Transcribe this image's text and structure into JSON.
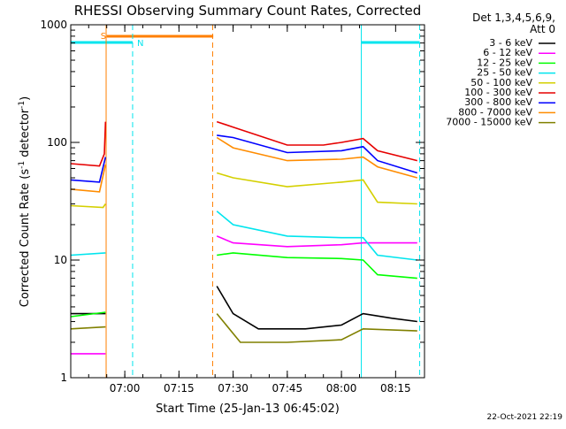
{
  "chart_data": {
    "type": "line",
    "title": "RHESSI Observing Summary Count Rates, Corrected",
    "xlabel": "Start Time (25-Jan-13 06:45:02)",
    "ylabel": "Corrected Count Rate (s⁻¹ detector⁻¹)",
    "ylabel_main": "Corrected Count Rate (s",
    "ylabel_sup1": "-1",
    "ylabel_mid": " detector",
    "ylabel_sup2": "-1",
    "ylabel_end": ")",
    "y_scale": "log",
    "ylim": [
      1,
      1000
    ],
    "xlim": [
      "06:45:02",
      "08:23:00"
    ],
    "x_ticks": [
      "07:00",
      "07:15",
      "07:30",
      "07:45",
      "08:00",
      "08:15"
    ],
    "y_ticks": [
      "1",
      "10",
      "100",
      "1000"
    ],
    "grid": false,
    "legend_position": "right",
    "legend_header": [
      "Det 1,3,4,5,6,9,",
      "Att 0"
    ],
    "timestamp": "22-Oct-2021 22:19",
    "colors": {
      "axes": "#000000",
      "saa_marker": "#ff7f00",
      "night_marker": "#00e5ee"
    },
    "markers": {
      "saa_label": "S",
      "night_label": "N",
      "saa_band": [
        "06:55:00",
        "07:24:30"
      ],
      "night_bands": [
        [
          "06:45:02",
          "07:02:10"
        ],
        [
          "08:05:30",
          "08:21:40"
        ]
      ],
      "saa_lines": [
        "06:54:50",
        "07:24:20"
      ],
      "night_lines": [
        "07:02:10",
        "08:05:30",
        "08:21:40"
      ]
    },
    "series": [
      {
        "name": "3 - 6 keV",
        "color": "#000000",
        "points": [
          [
            "06:45:02",
            3.5
          ],
          [
            "06:54:40",
            3.5
          ],
          [
            "07:25:30",
            6
          ],
          [
            "07:30",
            3.5
          ],
          [
            "07:37",
            2.6
          ],
          [
            "07:50",
            2.6
          ],
          [
            "08:00",
            2.8
          ],
          [
            "08:06",
            3.5
          ],
          [
            "08:14",
            3.2
          ],
          [
            "08:21",
            3.0
          ]
        ]
      },
      {
        "name": "6 - 12 keV",
        "color": "#ff00ff",
        "points": [
          [
            "06:45:02",
            1.6
          ],
          [
            "06:54:40",
            1.6
          ],
          [
            "07:25:30",
            16
          ],
          [
            "07:30",
            14
          ],
          [
            "07:45",
            13
          ],
          [
            "08:00",
            13.5
          ],
          [
            "08:06",
            14
          ],
          [
            "08:21",
            14
          ]
        ]
      },
      {
        "name": "12 - 25 keV",
        "color": "#00ff00",
        "points": [
          [
            "06:45:02",
            3.3
          ],
          [
            "06:54:40",
            3.6
          ],
          [
            "07:25:30",
            11
          ],
          [
            "07:30",
            11.5
          ],
          [
            "07:45",
            10.5
          ],
          [
            "08:00",
            10.3
          ],
          [
            "08:06",
            10
          ],
          [
            "08:10",
            7.5
          ],
          [
            "08:21",
            7
          ]
        ]
      },
      {
        "name": "25 - 50 keV",
        "color": "#00e5ee",
        "points": [
          [
            "06:45:02",
            11
          ],
          [
            "06:54:40",
            11.5
          ],
          [
            "07:25:30",
            26
          ],
          [
            "07:30",
            20
          ],
          [
            "07:45",
            16
          ],
          [
            "08:00",
            15.5
          ],
          [
            "08:06",
            15.5
          ],
          [
            "08:10",
            11
          ],
          [
            "08:21",
            10
          ]
        ]
      },
      {
        "name": "50 - 100 keV",
        "color": "#d4d000",
        "points": [
          [
            "06:45:02",
            29
          ],
          [
            "06:54:00",
            28
          ],
          [
            "06:54:40",
            30
          ],
          [
            "07:25:30",
            55
          ],
          [
            "07:30",
            50
          ],
          [
            "07:45",
            42
          ],
          [
            "08:00",
            46
          ],
          [
            "08:06",
            48
          ],
          [
            "08:10",
            31
          ],
          [
            "08:21",
            30
          ]
        ]
      },
      {
        "name": "100 - 300 keV",
        "color": "#e60000",
        "points": [
          [
            "06:45:02",
            66
          ],
          [
            "06:53:00",
            63
          ],
          [
            "06:54:20",
            80
          ],
          [
            "06:54:40",
            150
          ],
          [
            "07:25:30",
            150
          ],
          [
            "07:30",
            135
          ],
          [
            "07:45",
            95
          ],
          [
            "07:55",
            95
          ],
          [
            "08:00",
            100
          ],
          [
            "08:06",
            108
          ],
          [
            "08:10",
            85
          ],
          [
            "08:21",
            70
          ]
        ]
      },
      {
        "name": "300 - 800 keV",
        "color": "#0000ff",
        "points": [
          [
            "06:45:02",
            48
          ],
          [
            "06:53:00",
            46
          ],
          [
            "06:54:40",
            75
          ],
          [
            "07:25:30",
            115
          ],
          [
            "07:30",
            110
          ],
          [
            "07:45",
            82
          ],
          [
            "08:00",
            85
          ],
          [
            "08:06",
            92
          ],
          [
            "08:10",
            70
          ],
          [
            "08:21",
            55
          ]
        ]
      },
      {
        "name": "800 - 7000 keV",
        "color": "#ff8c00",
        "points": [
          [
            "06:45:02",
            40
          ],
          [
            "06:53:00",
            38
          ],
          [
            "06:54:40",
            65
          ],
          [
            "07:25:30",
            110
          ],
          [
            "07:30",
            90
          ],
          [
            "07:45",
            70
          ],
          [
            "08:00",
            72
          ],
          [
            "08:06",
            75
          ],
          [
            "08:10",
            62
          ],
          [
            "08:21",
            50
          ]
        ]
      },
      {
        "name": "7000 - 15000 keV",
        "color": "#808000",
        "points": [
          [
            "06:45:02",
            2.6
          ],
          [
            "06:54:40",
            2.7
          ],
          [
            "07:25:30",
            3.5
          ],
          [
            "07:32",
            2.0
          ],
          [
            "07:45",
            2.0
          ],
          [
            "08:00",
            2.1
          ],
          [
            "08:06",
            2.6
          ],
          [
            "08:21",
            2.5
          ]
        ]
      }
    ]
  }
}
